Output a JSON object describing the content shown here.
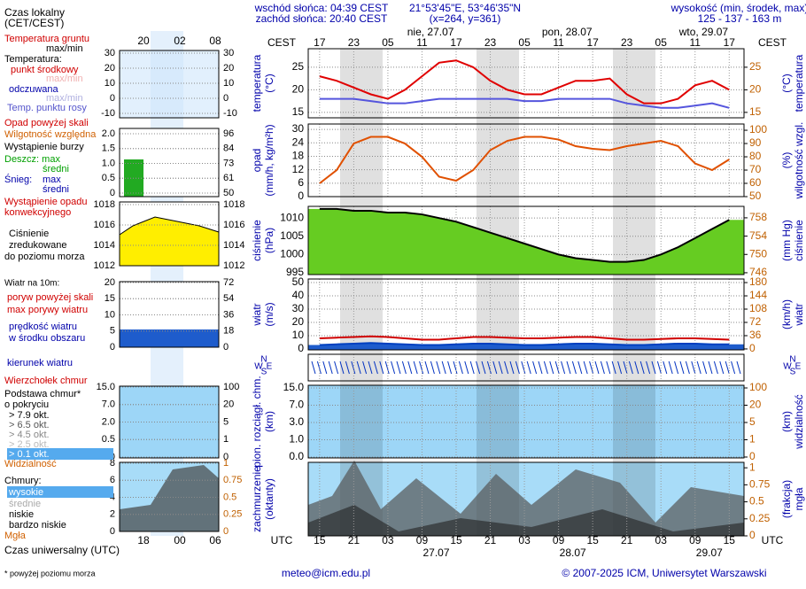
{
  "header": {
    "sunrise": "wschód słońca: 04:39 CEST",
    "sunset": "zachód słońca: 20:40 CEST",
    "coords": "21°53'45\"E, 53°46'35\"N",
    "grid": "(x=264, y=361)",
    "elevation_title": "wysokość (min, środek, max)",
    "elevation": "125 - 137 - 163 m"
  },
  "mini_axis": {
    "top_title": "Czas lokalny",
    "top_subtitle": "(CET/CEST)",
    "top_ticks": [
      "20",
      "02",
      "08"
    ],
    "bottom_title": "Czas uniwersalny (UTC)",
    "bottom_ticks": [
      "18",
      "00",
      "06"
    ]
  },
  "legend": [
    {
      "text": "Temperatura gruntu",
      "color": "#d00000"
    },
    {
      "text": "max/min",
      "color": "#000000"
    },
    {
      "text": "Temperatura:",
      "color": "#000000"
    },
    {
      "text": "punkt środkowy",
      "color": "#d00000"
    },
    {
      "text": "max/min",
      "color": "#f0b0b0"
    },
    {
      "text": "odczuwana",
      "color": "#0000aa"
    },
    {
      "text": "max/min",
      "color": "#b0b0e0"
    },
    {
      "text": "Temp. punktu rosy",
      "color": "#5555cc"
    },
    {
      "text": "Opad powyżej skali",
      "color": "#d00000"
    },
    {
      "text": "Wilgotność względna",
      "color": "#d06000"
    },
    {
      "text": "Wystąpienie burzy",
      "color": "#000000"
    },
    {
      "text": "Deszcz: max",
      "color": "#00a000"
    },
    {
      "text": "średni",
      "color": "#00a000"
    },
    {
      "text": "Śnieg:",
      "color": "#0000aa"
    },
    {
      "text": "max",
      "color": "#0000aa"
    },
    {
      "text": "średni",
      "color": "#0000aa"
    },
    {
      "text": "Wystąpienie opadu",
      "color": "#d00000"
    },
    {
      "text": "konwekcyjnego",
      "color": "#d00000"
    },
    {
      "text": "Ciśnienie",
      "color": "#000000"
    },
    {
      "text": "zredukowane",
      "color": "#000000"
    },
    {
      "text": "do poziomu morza",
      "color": "#000000"
    },
    {
      "text": "Wiatr na 10m:",
      "color": "#000000"
    },
    {
      "text": "poryw powyżej skali",
      "color": "#d00000"
    },
    {
      "text": "max porywy wiatru",
      "color": "#d00000"
    },
    {
      "text": "prędkość wiatru",
      "color": "#0000aa"
    },
    {
      "text": "w środku obszaru",
      "color": "#0000aa"
    },
    {
      "text": "kierunek wiatru",
      "color": "#0000aa"
    },
    {
      "text": "Wierzchołek chmur",
      "color": "#d00000"
    },
    {
      "text": "Podstawa chmur*",
      "color": "#000000"
    },
    {
      "text": "o pokryciu",
      "color": "#000000"
    },
    {
      "text": "> 7.9 okt.",
      "color": "#000000"
    },
    {
      "text": "> 6.5 okt.",
      "color": "#555555"
    },
    {
      "text": "> 4.5 okt.",
      "color": "#888888"
    },
    {
      "text": "> 2.5 okt.",
      "color": "#bbbbbb"
    },
    {
      "text": "> 0.1 okt.",
      "color": "#ffffff"
    },
    {
      "text": "Widzialność",
      "color": "#d06000"
    },
    {
      "text": "Chmury:",
      "color": "#000000"
    },
    {
      "text": "wysokie",
      "color": "#ffffff"
    },
    {
      "text": "średnie",
      "color": "#aaaaaa"
    },
    {
      "text": "niskie",
      "color": "#000000"
    },
    {
      "text": "bardzo niskie",
      "color": "#000000"
    },
    {
      "text": "Mgła",
      "color": "#d06000"
    }
  ],
  "mini_panels": [
    {
      "yticks": [
        30,
        20,
        10,
        0,
        -10
      ],
      "y2ticks": [
        30,
        20,
        10,
        0,
        -10
      ]
    },
    {
      "yticks": [
        {
          "value": 2,
          "label": "2.0"
        },
        1.5,
        {
          "value": 1,
          "label": "1.0"
        },
        0.5,
        0
      ],
      "y2ticks": [
        96,
        84,
        73,
        61,
        50
      ]
    },
    {
      "yticks": [
        1018,
        1016,
        1014,
        1012
      ],
      "y2ticks": [
        1018,
        1016,
        1014,
        1012
      ]
    },
    {
      "yticks": [
        20,
        15,
        10,
        5,
        0
      ],
      "y2ticks": [
        72,
        54,
        36,
        18,
        0
      ]
    },
    {
      "yticks": [
        {
          "value": 15,
          "label": "15.0"
        },
        {
          "value": 7,
          "label": "7.0"
        },
        {
          "value": 2,
          "label": "2.0"
        },
        0.5,
        {
          "value": 0,
          "label": "0.0"
        }
      ],
      "y2ticks": [
        100,
        20,
        5,
        1,
        0
      ]
    },
    {
      "yticks": [
        8,
        6,
        4,
        2,
        0
      ],
      "y2ticks": [
        1,
        0.75,
        0.5,
        0.25,
        0
      ]
    }
  ],
  "time_axis": {
    "xlim": [
      13,
      89.6
    ],
    "top_title": "CEST",
    "bottom_title": "UTC",
    "top_ticks": [
      {
        "value": 15,
        "label": "17"
      },
      {
        "value": 21,
        "label": "23"
      },
      {
        "value": 27,
        "label": "05"
      },
      {
        "value": 33,
        "label": "11"
      },
      {
        "value": 39,
        "label": "17"
      },
      {
        "value": 45,
        "label": "23"
      },
      {
        "value": 51,
        "label": "05"
      },
      {
        "value": 57,
        "label": "11"
      },
      {
        "value": 63,
        "label": "17"
      },
      {
        "value": 69,
        "label": "23"
      },
      {
        "value": 75,
        "label": "05"
      },
      {
        "value": 81,
        "label": "11"
      },
      {
        "value": 87,
        "label": "17"
      }
    ],
    "bottom_ticks": [
      15,
      21,
      {
        "value": 27,
        "label": "03"
      },
      {
        "value": 33,
        "label": "09"
      },
      {
        "value": 39,
        "label": "15"
      },
      {
        "value": 45,
        "label": "21"
      },
      {
        "value": 51,
        "label": "03"
      },
      {
        "value": 57,
        "label": "09"
      },
      {
        "value": 63,
        "label": "15"
      },
      {
        "value": 69,
        "label": "21"
      },
      {
        "value": 75,
        "label": "03"
      },
      {
        "value": 81,
        "label": "09"
      },
      {
        "value": 87,
        "label": "15"
      }
    ],
    "top_dates": [
      {
        "value": 34.5,
        "label": "nie, 27.07"
      },
      {
        "value": 58.5,
        "label": "pon, 28.07"
      },
      {
        "value": 82.5,
        "label": "wto, 29.07"
      }
    ],
    "bottom_dates": [
      {
        "value": 35.5,
        "label": "27.07"
      },
      {
        "value": 59.5,
        "label": "28.07"
      },
      {
        "value": 83.5,
        "label": "29.07"
      }
    ]
  },
  "compass": [
    "N",
    "W",
    "E",
    "S"
  ],
  "chart_data": [
    {
      "type": "line",
      "ylabel": [
        "temperatura",
        "(°C)"
      ],
      "y2label": [
        "(°C)",
        "temperatura"
      ],
      "ylim": [
        13.8,
        29.1
      ],
      "yticks": [
        15,
        20,
        25
      ],
      "y2lim": [
        13.8,
        29.1
      ],
      "y2ticks": [
        15,
        20,
        25
      ],
      "x": [
        15,
        18,
        21,
        24,
        27,
        30,
        33,
        36,
        39,
        42,
        45,
        48,
        51,
        54,
        57,
        60,
        63,
        66,
        69,
        72,
        75,
        78,
        81,
        84,
        87
      ],
      "series": [
        {
          "color": "#e00000",
          "values": [
            23,
            22,
            20.5,
            19,
            18,
            20,
            23,
            26,
            26.5,
            25,
            22,
            20,
            19,
            19,
            20.5,
            22,
            22,
            22.5,
            19,
            17,
            17,
            18,
            21,
            22,
            20
          ]
        },
        {
          "color": "#5555dd",
          "values": [
            18,
            18,
            18,
            17.5,
            17,
            17,
            17.5,
            18,
            18,
            18,
            18,
            18,
            17.5,
            17.5,
            18,
            18,
            18,
            18,
            17,
            16.5,
            16,
            16,
            16.5,
            17,
            16
          ]
        }
      ]
    },
    {
      "type": "line",
      "ylabel": [
        "opad",
        "(mm/h, kg/m²h)"
      ],
      "y2label": [
        "(%)",
        "wilgotność wzgl."
      ],
      "ylim": [
        0,
        32.4
      ],
      "yticks": [
        0,
        6,
        12,
        18,
        24,
        30
      ],
      "y2lim": [
        50,
        104.7
      ],
      "y2ticks": [
        50,
        60,
        70,
        80,
        90,
        100
      ],
      "x": [
        15,
        18,
        21,
        24,
        27,
        30,
        33,
        36,
        39,
        42,
        45,
        48,
        51,
        54,
        57,
        60,
        63,
        66,
        69,
        72,
        75,
        78,
        81,
        84,
        87
      ],
      "series": [
        {
          "color": "#e05000",
          "axis": "y2",
          "values": [
            60,
            70,
            90,
            95,
            95,
            90,
            80,
            65,
            62,
            70,
            85,
            92,
            95,
            95,
            93,
            88,
            86,
            85,
            88,
            90,
            92,
            88,
            75,
            70,
            78
          ]
        }
      ]
    },
    {
      "type": "area",
      "ylabel": [
        "ciśnienie",
        "(hPa)"
      ],
      "y2label": [
        "(mm Hg)",
        "ciśnienie"
      ],
      "ylim": [
        994.5,
        1013.2
      ],
      "yticks": [
        995,
        1000,
        1005,
        1010
      ],
      "y2lim": [
        745.6,
        760.5
      ],
      "y2ticks": [
        746,
        750,
        754,
        758
      ],
      "x": [
        15,
        18,
        21,
        24,
        27,
        30,
        33,
        36,
        39,
        42,
        45,
        48,
        51,
        54,
        57,
        60,
        63,
        66,
        69,
        72,
        75,
        78,
        81,
        84,
        87
      ],
      "series": [
        {
          "color": "#000000",
          "fill": "#66cc22",
          "values": [
            1012.5,
            1012.5,
            1012,
            1012,
            1011.5,
            1011.5,
            1011,
            1010,
            1009,
            1007.5,
            1006,
            1004.5,
            1003,
            1001.5,
            1000,
            999,
            998.5,
            998,
            998,
            998.5,
            1000,
            1002,
            1004.5,
            1007,
            1009.5
          ]
        }
      ]
    },
    {
      "type": "line",
      "ylabel": [
        "wiatr",
        "(m/s)"
      ],
      "y2label": [
        "(km/h)",
        "wiatr"
      ],
      "ylim": [
        -0.7,
        52.7
      ],
      "yticks": [
        0,
        10,
        20,
        30,
        40,
        50
      ],
      "y2lim": [
        -2.5,
        189.7
      ],
      "y2ticks": [
        0,
        36,
        72,
        108,
        144,
        180
      ],
      "x": [
        15,
        18,
        21,
        24,
        27,
        30,
        33,
        36,
        39,
        42,
        45,
        48,
        51,
        54,
        57,
        60,
        63,
        66,
        69,
        72,
        75,
        78,
        81,
        84,
        87
      ],
      "series": [
        {
          "color": "#0040c0",
          "fill": "#1e5ccc",
          "values": [
            3,
            3.5,
            4,
            4.5,
            4,
            3.5,
            3,
            3,
            3.5,
            4,
            4,
            3.5,
            3,
            3,
            3.5,
            4,
            4,
            3.5,
            3,
            3,
            3.5,
            4,
            4,
            3.5,
            3.5
          ]
        },
        {
          "color": "#d00000",
          "values": [
            8,
            8.5,
            9,
            9.5,
            9,
            8,
            7,
            7,
            8,
            9,
            9,
            8.5,
            8,
            8,
            8.5,
            9,
            9,
            8,
            7,
            7,
            7.5,
            8,
            8,
            7.5,
            7
          ]
        }
      ]
    },
    {
      "type": "ticks",
      "ylabel": [
        "pion. rozciągł. chm.",
        "(km)"
      ],
      "y2label": [
        "(km)",
        "widzialność"
      ],
      "yticks": [
        {
          "value": 15,
          "label": "15.0"
        },
        {
          "value": 7,
          "label": "7.0"
        },
        {
          "value": 3,
          "label": "3.0"
        },
        {
          "value": 1,
          "label": "1.0"
        },
        {
          "value": 0,
          "label": "0.0"
        }
      ],
      "y2ticks": [
        100,
        20,
        5,
        1,
        0
      ]
    },
    {
      "type": "ticks",
      "ylabel": [
        "zachmurzenie",
        "(oktanty)"
      ],
      "y2label": [
        "(frakcja)",
        "mgła"
      ],
      "y2lim": [
        0,
        1.08
      ],
      "y2ticks": [
        1,
        0.75,
        0.5,
        0.25,
        0
      ]
    }
  ],
  "footer": {
    "note": "* powyżej poziomu morza",
    "email": "meteo@icm.edu.pl",
    "copyright": "© 2007-2025 ICM, Uniwersytet Warszawski"
  }
}
